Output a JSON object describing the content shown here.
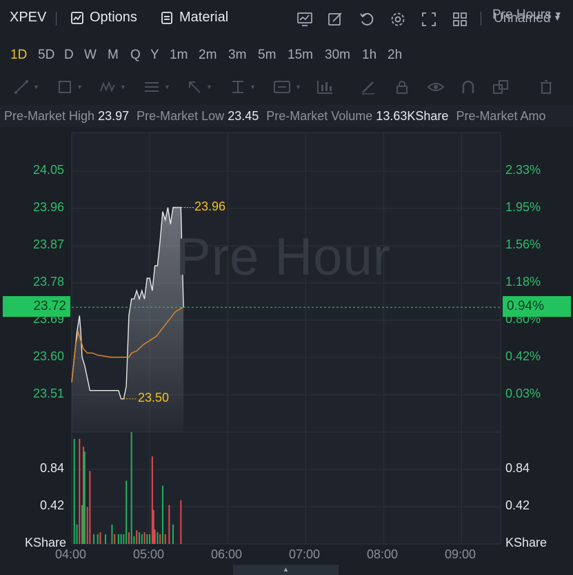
{
  "toolbar": {
    "ticker": "XPEV",
    "options_label": "Options",
    "material_label": "Material",
    "layout_name": "Unnamed"
  },
  "periods": {
    "items": [
      "1D",
      "5D",
      "D",
      "W",
      "M",
      "Q",
      "Y",
      "1m",
      "2m",
      "3m",
      "5m",
      "15m",
      "30m",
      "1h",
      "2h"
    ],
    "active": "1D",
    "session_label": "Pre Hours"
  },
  "stats": {
    "high_label": "Pre-Market High",
    "high_value": "23.97",
    "low_label": "Pre-Market Low",
    "low_value": "23.45",
    "volume_label": "Pre-Market Volume",
    "volume_value": "13.63KShare",
    "amount_label": "Pre-Market Amo"
  },
  "chart_data": {
    "type": "line",
    "watermark": "Pre Hour",
    "price_axis": {
      "labels": [
        "24.05",
        "23.96",
        "23.87",
        "23.78",
        "23.69",
        "23.60",
        "23.51"
      ],
      "ylim": [
        23.42,
        24.14
      ]
    },
    "percent_axis": {
      "labels": [
        "2.33%",
        "1.95%",
        "1.56%",
        "1.18%",
        "0.80%",
        "0.42%",
        "0.03%"
      ]
    },
    "current": {
      "price": "23.72",
      "percent": "0.94%",
      "value": 23.72
    },
    "annotations": {
      "high_label": "23.96",
      "high_value": 23.96,
      "low_label": "23.50",
      "low_value": 23.5
    },
    "time_axis": {
      "labels": [
        "04:00",
        "05:00",
        "06:00",
        "07:00",
        "08:00",
        "09:00"
      ],
      "xlim": [
        0,
        330
      ]
    },
    "price_series": {
      "x": [
        0,
        2,
        4,
        5,
        6,
        7,
        8,
        10,
        12,
        14,
        16,
        18,
        20,
        22,
        24,
        26,
        28,
        30,
        32,
        34,
        36,
        38,
        40,
        42,
        44,
        46,
        48,
        50,
        52,
        54,
        56,
        58,
        60,
        62,
        64,
        66,
        68,
        70,
        72,
        74,
        76,
        78,
        80,
        82,
        84,
        86
      ],
      "y": [
        23.54,
        23.6,
        23.66,
        23.68,
        23.7,
        23.66,
        23.6,
        23.58,
        23.55,
        23.52,
        23.52,
        23.52,
        23.52,
        23.52,
        23.52,
        23.52,
        23.52,
        23.52,
        23.52,
        23.52,
        23.52,
        23.5,
        23.5,
        23.53,
        23.7,
        23.74,
        23.74,
        23.76,
        23.74,
        23.76,
        23.74,
        23.79,
        23.79,
        23.76,
        23.82,
        23.82,
        23.88,
        23.95,
        23.93,
        23.96,
        23.92,
        23.96,
        23.96,
        23.96,
        23.96,
        23.72
      ]
    },
    "avg_series": {
      "x": [
        0,
        3,
        5,
        7,
        9,
        12,
        16,
        20,
        30,
        35,
        40,
        44,
        46,
        50,
        55,
        60,
        65,
        70,
        75,
        80,
        86
      ],
      "y": [
        23.54,
        23.63,
        23.66,
        23.64,
        23.62,
        23.61,
        23.61,
        23.605,
        23.6,
        23.6,
        23.6,
        23.6,
        23.61,
        23.615,
        23.63,
        23.64,
        23.65,
        23.67,
        23.69,
        23.71,
        23.72
      ]
    },
    "volume_axis": {
      "unit": "KShare",
      "labels": [
        "0.84",
        "0.42"
      ],
      "ylim": [
        0,
        1.15
      ]
    },
    "volume_series": {
      "x": [
        2,
        4,
        6,
        8,
        9,
        10,
        12,
        14,
        17,
        20,
        22,
        26,
        31,
        33,
        36,
        38,
        40,
        42,
        44,
        46,
        48,
        50,
        52,
        54,
        56,
        58,
        60,
        62,
        63,
        64,
        66,
        68,
        70,
        72,
        75,
        78,
        84
      ],
      "v": [
        1.08,
        0.2,
        1.08,
        0.4,
        1.0,
        0.95,
        0.38,
        0.75,
        0.1,
        0.1,
        0.12,
        0.1,
        0.2,
        0.1,
        0.1,
        0.1,
        0.1,
        0.65,
        0.12,
        1.15,
        0.08,
        0.14,
        0.12,
        0.1,
        0.12,
        0.1,
        0.1,
        0.9,
        0.35,
        0.15,
        0.12,
        0.1,
        0.6,
        0.1,
        0.4,
        0.2,
        0.45
      ],
      "dir": [
        "g",
        "g",
        "r",
        "g",
        "r",
        "g",
        "r",
        "r",
        "g",
        "g",
        "r",
        "g",
        "g",
        "r",
        "g",
        "g",
        "g",
        "g",
        "r",
        "g",
        "g",
        "r",
        "g",
        "g",
        "r",
        "g",
        "g",
        "r",
        "r",
        "r",
        "g",
        "r",
        "g",
        "r",
        "r",
        "g",
        "r"
      ]
    }
  },
  "colors": {
    "up": "#1fb35d",
    "down": "#e34a4a",
    "price_line": "#e8e8e8",
    "avg_line": "#e58a2c",
    "accent": "#f3c21b"
  }
}
